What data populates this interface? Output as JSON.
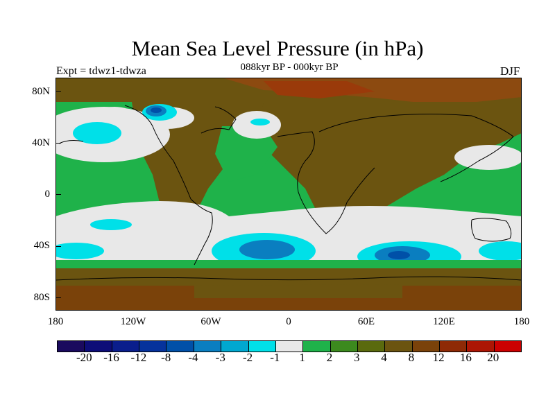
{
  "title": "Mean Sea Level Pressure (in hPa)",
  "experiment": "Expt = tdwz1-tdwza",
  "subtitle": "088kyr BP - 000kyr BP",
  "season": "DJF",
  "map": {
    "type": "filled-contour-world-map",
    "field_colors": {
      "ocean_south_low": "#e8e8e8",
      "tropical_band": "#1fb24a",
      "continents": "#6b5410",
      "polar_high": "#8c4a10",
      "negative_core": "#00b8d8",
      "negative_deep": "#0066b0"
    },
    "y_labels": [
      "80N",
      "40N",
      "0",
      "40S",
      "80S"
    ],
    "x_labels": [
      "180",
      "120W",
      "60W",
      "0",
      "60E",
      "120E",
      "180"
    ]
  },
  "colorbar": {
    "colors": [
      "#1a0a5e",
      "#0d0d78",
      "#0a1e8c",
      "#06329c",
      "#0050a8",
      "#0a7ec0",
      "#00a8d0",
      "#00e0e8",
      "#e8e8e8",
      "#1fb24a",
      "#3c8a1e",
      "#5a6a0e",
      "#6b5410",
      "#7a420a",
      "#8e2a06",
      "#ac1604",
      "#cc0000"
    ],
    "labels": [
      "-20",
      "-16",
      "-12",
      "-8",
      "-4",
      "-3",
      "-2",
      "-1",
      "1",
      "2",
      "3",
      "4",
      "8",
      "12",
      "16",
      "20"
    ]
  }
}
